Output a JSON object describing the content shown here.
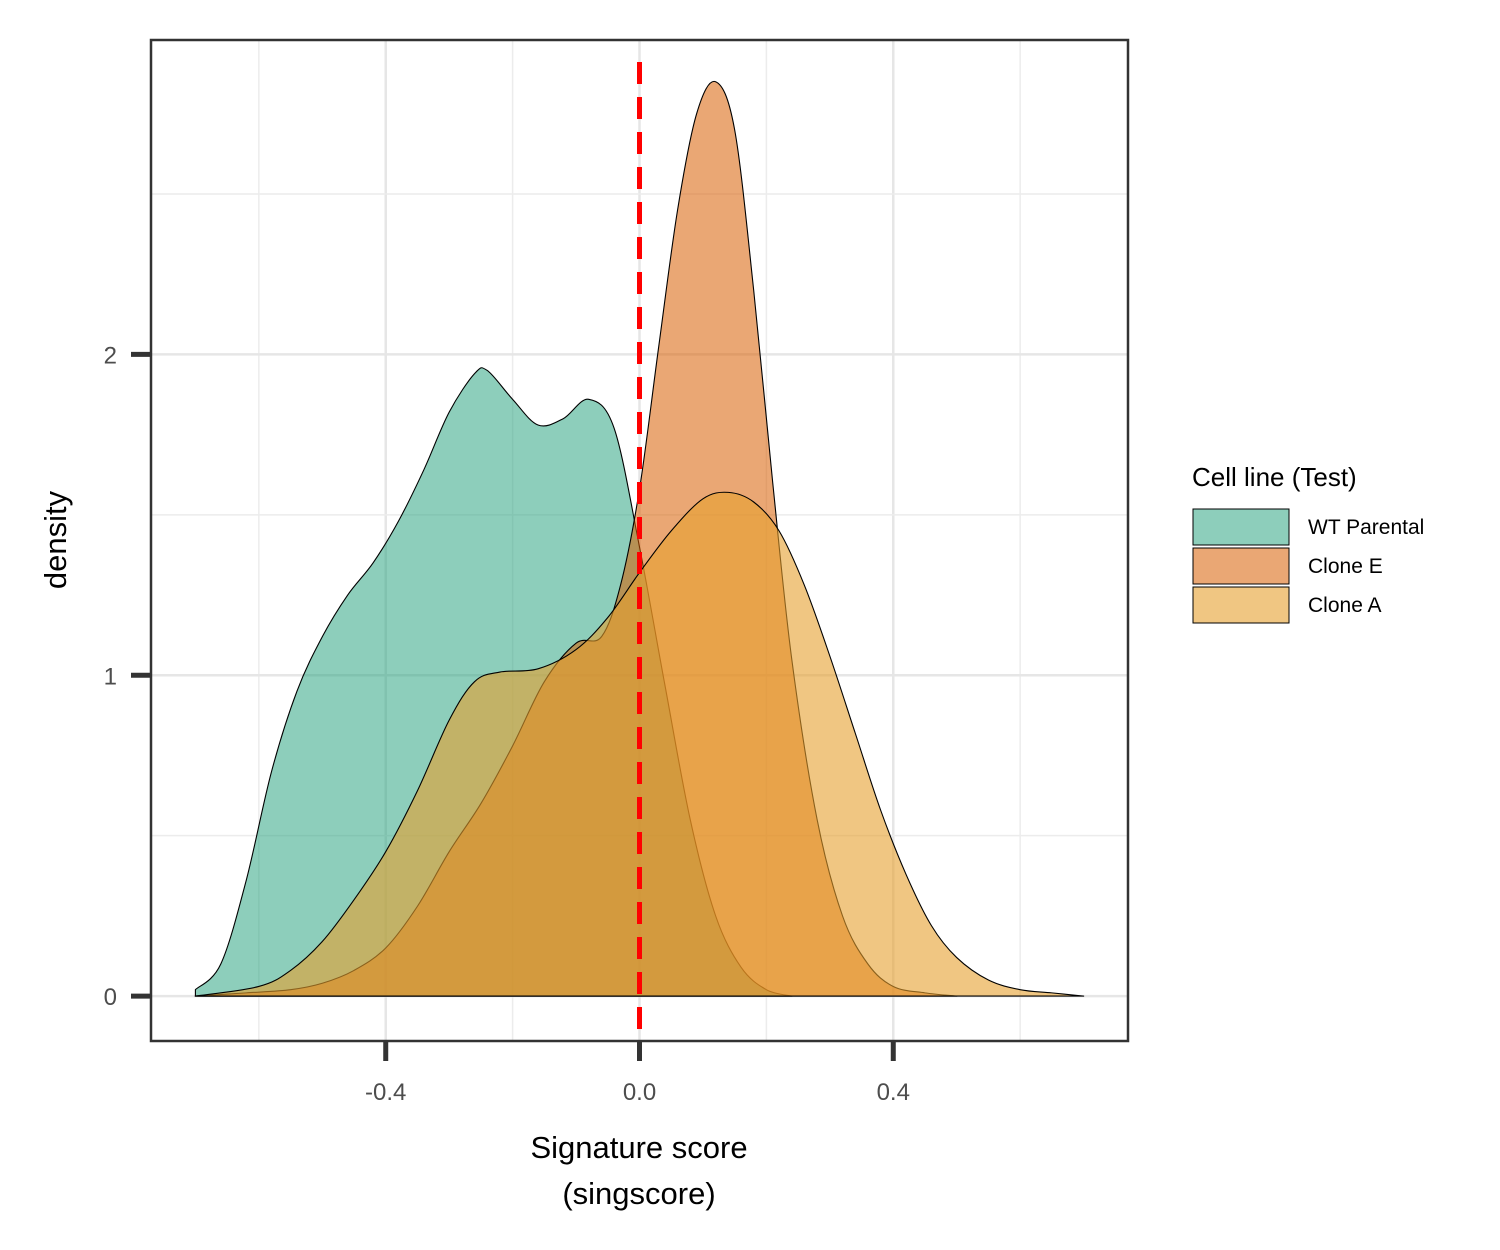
{
  "chart_data": {
    "type": "area",
    "subtype": "density",
    "title": "",
    "xlabel_line1": "Signature score",
    "xlabel_line2": "(singscore)",
    "ylabel": "density",
    "xlim": [
      -0.77,
      0.77
    ],
    "ylim": [
      -0.14,
      2.98
    ],
    "x_ticks": [
      -0.4,
      0.0,
      0.4
    ],
    "x_tick_labels": [
      "-0.4",
      "0.0",
      "0.4"
    ],
    "y_ticks": [
      0,
      1,
      2
    ],
    "y_tick_labels": [
      "0",
      "1",
      "2"
    ],
    "grid": true,
    "legend": {
      "title": "Cell line (Test)",
      "position": "right",
      "entries": [
        "WT Parental",
        "Clone E",
        "Clone A"
      ]
    },
    "reference_line": {
      "x": 0.0,
      "style": "dashed",
      "color": "#ff0000"
    },
    "series": [
      {
        "name": "WT Parental",
        "color": "#1b9e77",
        "opacity": 0.5,
        "points": [
          [
            -0.7,
            0.02
          ],
          [
            -0.66,
            0.1
          ],
          [
            -0.62,
            0.36
          ],
          [
            -0.58,
            0.7
          ],
          [
            -0.54,
            0.95
          ],
          [
            -0.5,
            1.12
          ],
          [
            -0.46,
            1.25
          ],
          [
            -0.42,
            1.35
          ],
          [
            -0.38,
            1.48
          ],
          [
            -0.34,
            1.64
          ],
          [
            -0.3,
            1.82
          ],
          [
            -0.26,
            1.94
          ],
          [
            -0.24,
            1.95
          ],
          [
            -0.2,
            1.86
          ],
          [
            -0.16,
            1.78
          ],
          [
            -0.12,
            1.8
          ],
          [
            -0.08,
            1.86
          ],
          [
            -0.04,
            1.77
          ],
          [
            0.0,
            1.4
          ],
          [
            0.04,
            0.97
          ],
          [
            0.08,
            0.55
          ],
          [
            0.12,
            0.25
          ],
          [
            0.16,
            0.09
          ],
          [
            0.2,
            0.02
          ],
          [
            0.24,
            0.0
          ]
        ]
      },
      {
        "name": "Clone E",
        "color": "#d95f02",
        "opacity": 0.55,
        "points": [
          [
            -0.7,
            0.0
          ],
          [
            -0.62,
            0.01
          ],
          [
            -0.55,
            0.02
          ],
          [
            -0.5,
            0.04
          ],
          [
            -0.45,
            0.08
          ],
          [
            -0.4,
            0.15
          ],
          [
            -0.35,
            0.28
          ],
          [
            -0.3,
            0.45
          ],
          [
            -0.25,
            0.6
          ],
          [
            -0.2,
            0.78
          ],
          [
            -0.15,
            0.98
          ],
          [
            -0.1,
            1.1
          ],
          [
            -0.06,
            1.12
          ],
          [
            -0.03,
            1.28
          ],
          [
            0.0,
            1.58
          ],
          [
            0.03,
            2.02
          ],
          [
            0.06,
            2.45
          ],
          [
            0.09,
            2.75
          ],
          [
            0.12,
            2.85
          ],
          [
            0.15,
            2.7
          ],
          [
            0.18,
            2.2
          ],
          [
            0.21,
            1.6
          ],
          [
            0.24,
            1.05
          ],
          [
            0.28,
            0.55
          ],
          [
            0.32,
            0.25
          ],
          [
            0.36,
            0.1
          ],
          [
            0.4,
            0.03
          ],
          [
            0.45,
            0.01
          ],
          [
            0.5,
            0.0
          ]
        ]
      },
      {
        "name": "Clone A",
        "color": "#e6a02e",
        "opacity": 0.6,
        "points": [
          [
            -0.7,
            0.0
          ],
          [
            -0.6,
            0.03
          ],
          [
            -0.55,
            0.08
          ],
          [
            -0.5,
            0.17
          ],
          [
            -0.45,
            0.3
          ],
          [
            -0.4,
            0.45
          ],
          [
            -0.35,
            0.64
          ],
          [
            -0.3,
            0.86
          ],
          [
            -0.26,
            0.98
          ],
          [
            -0.22,
            1.01
          ],
          [
            -0.16,
            1.02
          ],
          [
            -0.1,
            1.08
          ],
          [
            -0.05,
            1.18
          ],
          [
            0.0,
            1.32
          ],
          [
            0.05,
            1.45
          ],
          [
            0.1,
            1.55
          ],
          [
            0.14,
            1.57
          ],
          [
            0.18,
            1.54
          ],
          [
            0.22,
            1.45
          ],
          [
            0.26,
            1.28
          ],
          [
            0.3,
            1.06
          ],
          [
            0.34,
            0.82
          ],
          [
            0.38,
            0.58
          ],
          [
            0.42,
            0.38
          ],
          [
            0.46,
            0.22
          ],
          [
            0.5,
            0.12
          ],
          [
            0.55,
            0.05
          ],
          [
            0.6,
            0.02
          ],
          [
            0.65,
            0.01
          ],
          [
            0.7,
            0.0
          ]
        ]
      }
    ]
  }
}
